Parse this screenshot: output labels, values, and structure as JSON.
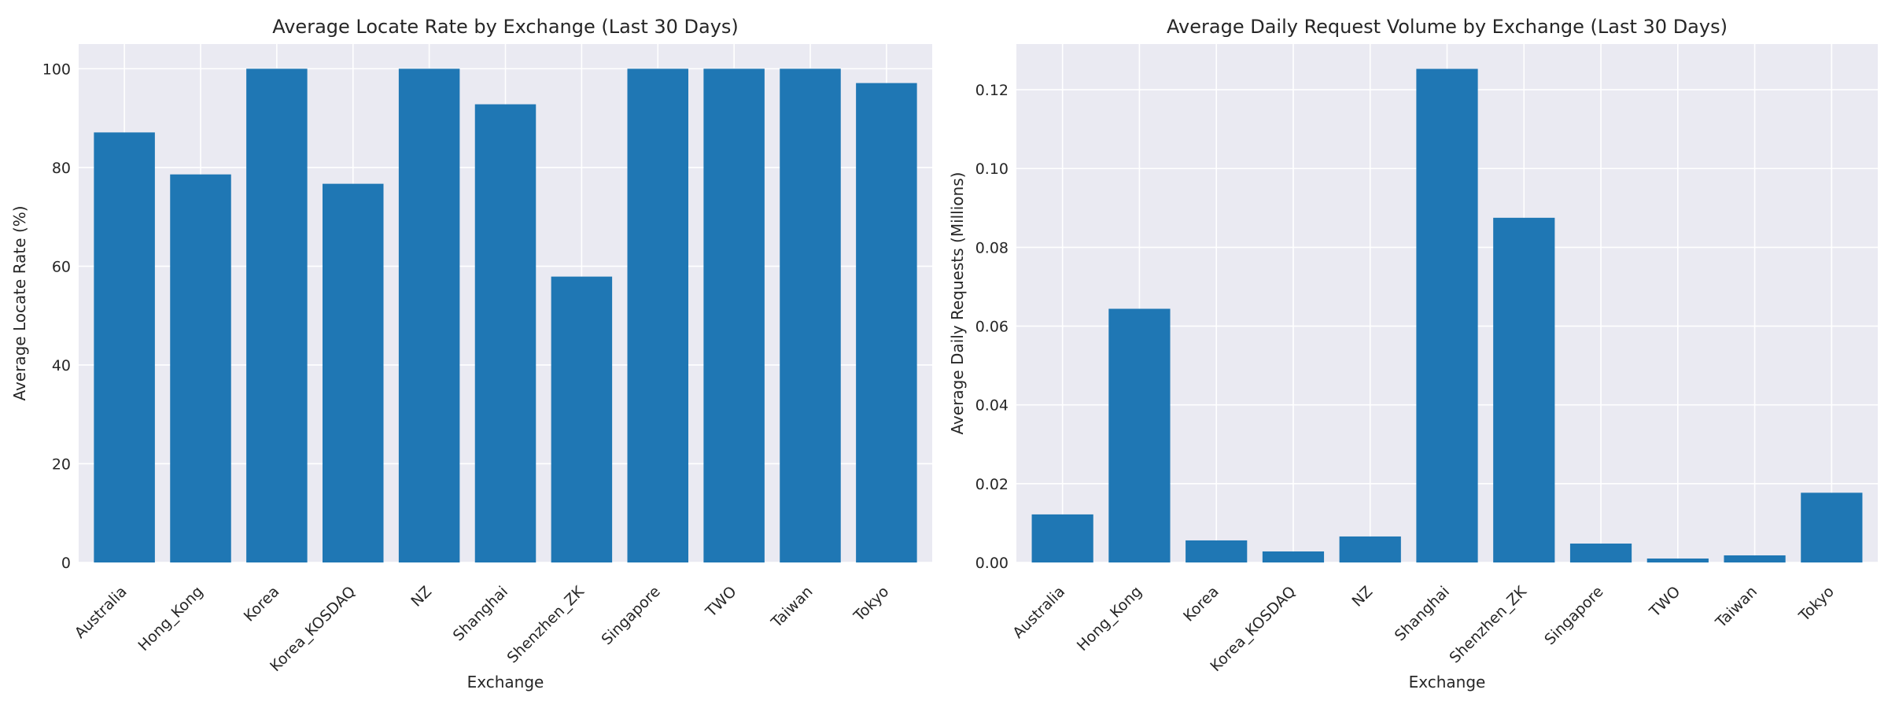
{
  "chart_data": [
    {
      "type": "bar",
      "title": "Average Locate Rate by Exchange (Last 30 Days)",
      "xlabel": "Exchange",
      "ylabel": "Average Locate Rate (%)",
      "categories": [
        "Australia",
        "Hong_Kong",
        "Korea",
        "Korea_KOSDAQ",
        "NZ",
        "Shanghai",
        "Shenzhen_ZK",
        "Singapore",
        "TWO",
        "Taiwan",
        "Tokyo"
      ],
      "values": [
        87.1,
        78.6,
        100,
        76.7,
        100,
        92.8,
        57.9,
        100,
        100,
        100,
        97.1
      ],
      "ylim": [
        0,
        105
      ],
      "yticks": [
        "0",
        "20",
        "40",
        "60",
        "80",
        "100"
      ],
      "grid": true,
      "color": "#1f77b4"
    },
    {
      "type": "bar",
      "title": "Average Daily Request Volume by Exchange (Last 30 Days)",
      "xlabel": "Exchange",
      "ylabel": "Average Daily Requests (Millions)",
      "categories": [
        "Australia",
        "Hong_Kong",
        "Korea",
        "Korea_KOSDAQ",
        "NZ",
        "Shanghai",
        "Shenzhen_ZK",
        "Singapore",
        "TWO",
        "Taiwan",
        "Tokyo"
      ],
      "values": [
        0.0122,
        0.0644,
        0.0056,
        0.0028,
        0.0066,
        0.1253,
        0.0875,
        0.0048,
        0.001,
        0.0018,
        0.0177
      ],
      "ylim": [
        0,
        0.1316
      ],
      "yticks": [
        "0.00",
        "0.02",
        "0.04",
        "0.06",
        "0.08",
        "0.10",
        "0.12"
      ],
      "grid": true,
      "color": "#1f77b4"
    }
  ]
}
